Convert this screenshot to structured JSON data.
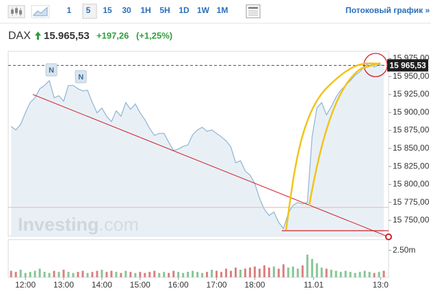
{
  "toolbar": {
    "intervals": [
      "1",
      "5",
      "15",
      "30",
      "1H",
      "5H",
      "1D",
      "1W",
      "1M"
    ],
    "stream_link": "Потоковый график »"
  },
  "header": {
    "symbol": "DAX",
    "price": "15.965,53",
    "change": "+197,26",
    "change_pct": "(+1,25%)"
  },
  "chart_data": {
    "type": "line",
    "x": [
      11.625,
      11.75,
      11.875,
      12,
      12.125,
      12.25,
      12.375,
      12.5,
      12.625,
      12.75,
      12.875,
      13,
      13.125,
      13.25,
      13.375,
      13.5,
      13.625,
      13.75,
      13.875,
      14,
      14.125,
      14.25,
      14.375,
      14.5,
      14.625,
      14.75,
      14.875,
      15,
      15.125,
      15.25,
      15.375,
      15.5,
      15.625,
      15.75,
      15.875,
      16,
      16.125,
      16.25,
      16.375,
      16.5,
      16.625,
      16.75,
      16.875,
      17,
      17.125,
      17.25,
      17.375,
      17.5,
      17.625,
      17.75,
      17.875,
      18,
      18.125,
      18.25,
      18.375,
      18.5,
      18.625,
      18.75,
      18.875,
      19,
      19.125,
      19.25,
      19.375,
      19.5,
      19.625,
      19.75,
      19.875,
      20,
      20.125,
      20.25,
      20.375,
      20.5,
      20.625,
      20.75,
      20.875,
      21,
      21.125,
      21.25,
      21.375
    ],
    "series": [
      {
        "color": "#8fb3d1",
        "values": [
          15880.5,
          15875.7,
          15883.4,
          15899.5,
          15913.8,
          15920.5,
          15932.9,
          15937.6,
          15944.3,
          15920.5,
          15923.3,
          15915.7,
          15937.6,
          15937.6,
          15932.9,
          15930.0,
          15931.0,
          15913.8,
          15899.5,
          15906.2,
          15894.8,
          15887.2,
          15902.4,
          15894.8,
          15913.8,
          15904.3,
          15911.9,
          15899.5,
          15890.0,
          15877.6,
          15868.1,
          15871.0,
          15871.0,
          15858.6,
          15847.2,
          15849.1,
          15852.9,
          15854.8,
          15869.1,
          15875.7,
          15879.5,
          15873.8,
          15875.7,
          15871.0,
          15866.2,
          15860.5,
          15851.9,
          15830.0,
          15832.9,
          15818.6,
          15812.9,
          15801.5,
          15780.5,
          15765.3,
          15756.7,
          15761.5,
          15747.2,
          15738.7,
          15759.6,
          15771.0,
          15774.8,
          15772.9,
          15774.8,
          15866.2,
          15906.2,
          15913.8,
          15896.7,
          15908.1,
          15921.4,
          15931.0,
          15937.6,
          15944.3,
          15951.9,
          15956.7,
          15964.3,
          15969.0,
          15963.3,
          15966.2,
          15965.5
        ]
      }
    ],
    "xlim": [
      11.55,
      21.5
    ],
    "xticks": [
      {
        "value": 12,
        "label": "12:00"
      },
      {
        "value": 13,
        "label": "13:00"
      },
      {
        "value": 14,
        "label": "14:00"
      },
      {
        "value": 15,
        "label": "15:00"
      },
      {
        "value": 16,
        "label": "16:00"
      },
      {
        "value": 17,
        "label": "17:00"
      },
      {
        "value": 18,
        "label": "18:00"
      },
      {
        "value": 19.54,
        "label": "11.01"
      },
      {
        "value": 21.29,
        "label": "13:0"
      }
    ],
    "ylim": [
      15728,
      15985
    ],
    "yticks": [
      {
        "value": 15750,
        "label": "15 750,00"
      },
      {
        "value": 15775,
        "label": "15 775,00"
      },
      {
        "value": 15800,
        "label": "15 800,00"
      },
      {
        "value": 15825,
        "label": "15 825,00"
      },
      {
        "value": 15850,
        "label": "15 850,00"
      },
      {
        "value": 15875,
        "label": "15 875,00"
      },
      {
        "value": 15900,
        "label": "15 900,00"
      },
      {
        "value": 15925,
        "label": "15 925,00"
      },
      {
        "value": 15950,
        "label": "15 950,00"
      },
      {
        "value": 15975,
        "label": "15 975,00"
      }
    ],
    "last_price": {
      "value": 15965.53,
      "label": "15 965,53"
    },
    "news_markers": [
      {
        "x": 12.68,
        "label": "N"
      },
      {
        "x": 13.45,
        "label": "N"
      }
    ],
    "volume": {
      "values": [
        0.6,
        0.5,
        0.7,
        0.4,
        0.5,
        0.6,
        0.8,
        0.5,
        0.4,
        0.6,
        0.5,
        0.7,
        0.5,
        0.4,
        0.5,
        0.6,
        0.4,
        0.5,
        0.6,
        0.7,
        0.5,
        0.6,
        0.5,
        0.4,
        0.6,
        0.5,
        0.4,
        0.5,
        0.4,
        0.5,
        0.6,
        0.4,
        0.5,
        0.4,
        0.6,
        0.5,
        0.4,
        0.5,
        0.6,
        0.5,
        0.4,
        0.5,
        0.7,
        0.6,
        0.5,
        0.8,
        0.6,
        0.9,
        0.7,
        0.8,
        0.9,
        1.0,
        0.8,
        1.1,
        0.9,
        1.0,
        0.8,
        1.2,
        0.9,
        1.0,
        0.8,
        1.1,
        2.1,
        1.7,
        1.3,
        0.9,
        0.8,
        0.7,
        0.6,
        0.5,
        0.6,
        0.5,
        0.4,
        0.5,
        0.6,
        0.5,
        0.4,
        0.5,
        0.6
      ],
      "ylim": [
        0,
        3.5
      ],
      "yticks": [
        {
          "value": 2.5,
          "label": "2.50m"
        }
      ],
      "up_color": "#86c595",
      "down_color": "#d98080"
    },
    "watermark": [
      "Investing",
      ".com"
    ]
  }
}
